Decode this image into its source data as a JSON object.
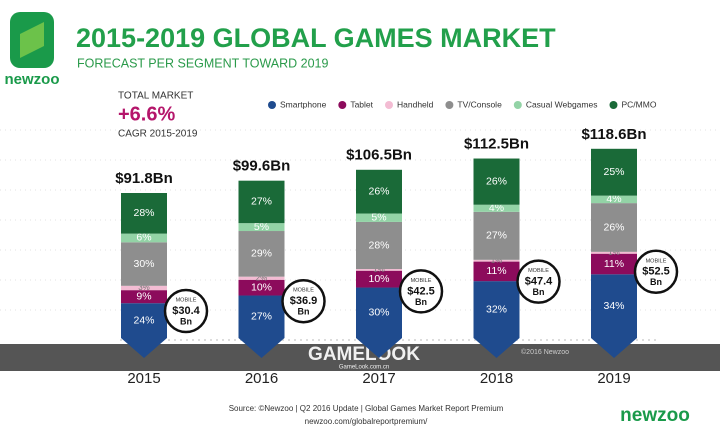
{
  "logo": "newzoo",
  "chart_data": {
    "type": "bar",
    "stacked": true,
    "title": "2015-2019 GLOBAL GAMES MARKET",
    "subtitle": "FORECAST PER SEGMENT TOWARD 2019",
    "callout": {
      "label": "TOTAL MARKET",
      "value_label": "+6.6%",
      "note": "CAGR 2015-2019"
    },
    "categories": [
      "2015",
      "2016",
      "2017",
      "2018",
      "2019"
    ],
    "totals": {
      "values": [
        91.8,
        99.6,
        106.5,
        112.5,
        118.6
      ],
      "value_labels": [
        "$91.8Bn",
        "$99.6Bn",
        "$106.5Bn",
        "$112.5Bn",
        "$118.6Bn"
      ]
    },
    "series": [
      {
        "name": "Smartphone",
        "color": "#1f4b8e",
        "values": [
          24,
          27,
          30,
          32,
          34
        ],
        "value_labels": [
          "24%",
          "27%",
          "30%",
          "32%",
          "34%"
        ]
      },
      {
        "name": "Tablet",
        "color": "#8c0b5c",
        "values": [
          9,
          10,
          10,
          11,
          11
        ],
        "value_labels": [
          "9%",
          "10%",
          "10%",
          "11%",
          "11%"
        ]
      },
      {
        "name": "Handheld",
        "color": "#f3bcd3",
        "values": [
          3,
          2,
          1,
          1,
          1
        ],
        "value_labels": [
          "3%",
          "2%",
          "1%",
          "1%",
          "1%"
        ]
      },
      {
        "name": "TV/Console",
        "color": "#8e8e8e",
        "values": [
          30,
          29,
          28,
          27,
          26
        ],
        "value_labels": [
          "30%",
          "29%",
          "28%",
          "27%",
          "26%"
        ]
      },
      {
        "name": "Casual Webgames",
        "color": "#93d3a6",
        "values": [
          6,
          5,
          5,
          4,
          4
        ],
        "value_labels": [
          "6%",
          "5%",
          "5%",
          "4%",
          "4%"
        ]
      },
      {
        "name": "PC/MMO",
        "color": "#1a6a38",
        "values": [
          28,
          27,
          26,
          26,
          25
        ],
        "value_labels": [
          "28%",
          "27%",
          "26%",
          "26%",
          "25%"
        ]
      }
    ],
    "mobile": {
      "label": "MOBILE",
      "unit": "Bn",
      "values": [
        30.4,
        36.9,
        42.5,
        47.4,
        52.5
      ],
      "value_labels": [
        "$30.4",
        "$36.9",
        "$42.5",
        "$47.4",
        "$52.5"
      ]
    },
    "copyright": "©2016 Newzoo",
    "source": [
      "Source: ©Newzoo | Q2 2016 Update | Global Games Market Report Premium",
      "newzoo.com/globalreportpremium/"
    ]
  },
  "watermark": {
    "title": "GAMELOOK",
    "url": "GameLook.com.cn"
  },
  "footer_logo": "newzoo"
}
